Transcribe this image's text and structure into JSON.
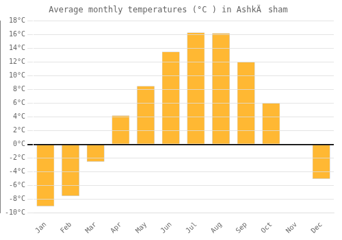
{
  "chart_data": {
    "type": "bar",
    "title": "Average monthly temperatures (°C ) in AshkÄsham",
    "categories": [
      "Jan",
      "Feb",
      "Mar",
      "Apr",
      "May",
      "Jun",
      "Jul",
      "Aug",
      "Sep",
      "Oct",
      "Nov",
      "Dec"
    ],
    "values": [
      -9,
      -7.5,
      -2.5,
      4.2,
      8.5,
      13.5,
      16.3,
      16.2,
      12,
      6,
      0,
      -5
    ],
    "color": "#FFB833",
    "ylim": [
      -10,
      18
    ],
    "yticks": [
      {
        "value": -10,
        "label": "-10°C"
      },
      {
        "value": -8,
        "label": "-8°C"
      },
      {
        "value": -6,
        "label": "-6°C"
      },
      {
        "value": -4,
        "label": "-4°C"
      },
      {
        "value": -2,
        "label": "-2°C"
      },
      {
        "value": 0,
        "label": "0°C"
      },
      {
        "value": 2,
        "label": "2°C"
      },
      {
        "value": 4,
        "label": "4°C"
      },
      {
        "value": 6,
        "label": "6°C"
      },
      {
        "value": 8,
        "label": "8°C"
      },
      {
        "value": 10,
        "label": "10°C"
      },
      {
        "value": 12,
        "label": "12°C"
      },
      {
        "value": 14,
        "label": "14°C"
      },
      {
        "value": 16,
        "label": "16°C"
      },
      {
        "value": 18,
        "label": "18°C"
      }
    ],
    "grid": true
  }
}
